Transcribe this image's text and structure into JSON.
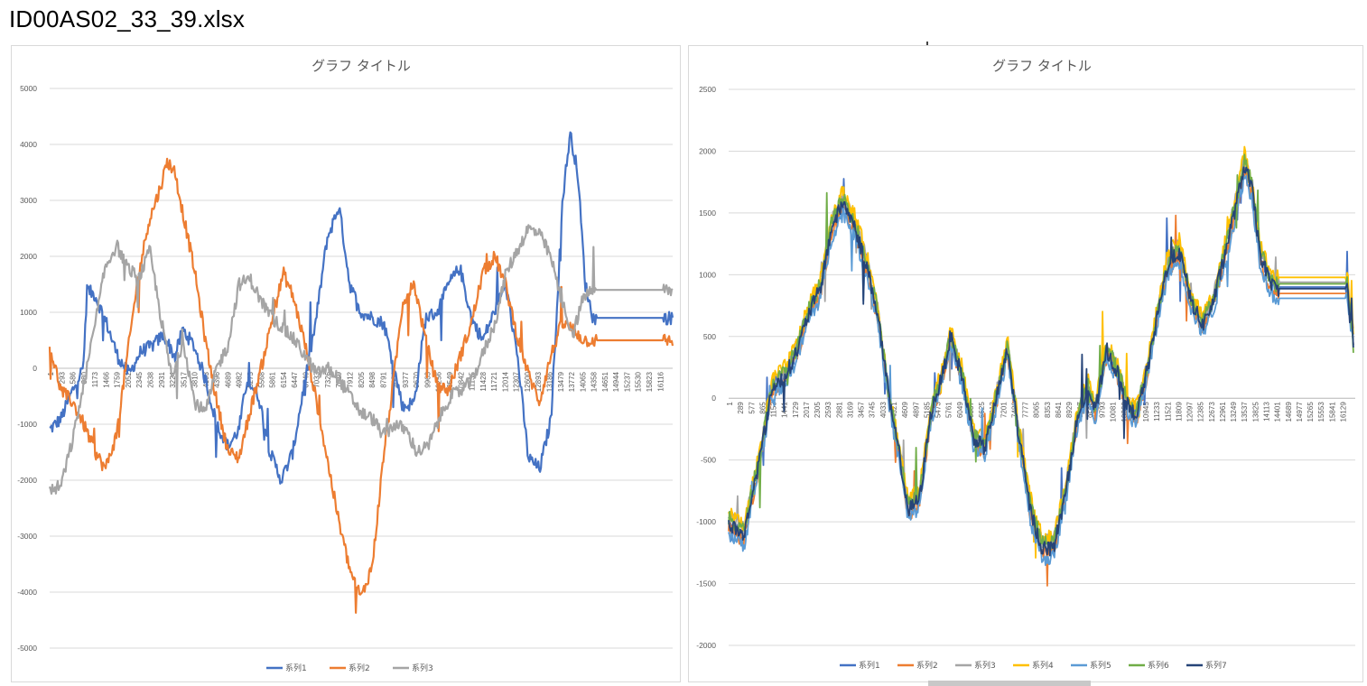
{
  "file_title": "ID00AS02_33_39.xlsx",
  "chart_data": [
    {
      "type": "line",
      "title": "グラフ タイトル",
      "xlabel": "",
      "ylabel": "",
      "ylim": [
        -5000,
        5000
      ],
      "yticks": [
        -5000,
        -4000,
        -3000,
        -2000,
        -1000,
        0,
        1000,
        2000,
        3000,
        4000,
        5000
      ],
      "xmax": 16400,
      "grid": true,
      "legend": "bottom",
      "x_tick_labels": [
        "1",
        "293",
        "586",
        "880",
        "1173",
        "1466",
        "1759",
        "2052",
        "2345",
        "2638",
        "2931",
        "3224",
        "3517",
        "3810",
        "4103",
        "4396",
        "4689",
        "4982",
        "5275",
        "5568",
        "5861",
        "6154",
        "6447",
        "6740",
        "7033",
        "7326",
        "7619",
        "7912",
        "8205",
        "8498",
        "8791",
        "9084",
        "9377",
        "9670",
        "9963",
        "10256",
        "10549",
        "10842",
        "11135",
        "11428",
        "11721",
        "12014",
        "12307",
        "12600",
        "12893",
        "13186",
        "13479",
        "13772",
        "14065",
        "14358",
        "14651",
        "14944",
        "15237",
        "15530",
        "15823",
        "16116"
      ],
      "series": [
        {
          "name": "系列1",
          "color": "#4472C4",
          "x": [
            1,
            300,
            600,
            880,
            1000,
            1200,
            1500,
            1800,
            2100,
            2400,
            2700,
            3000,
            3300,
            3500,
            3800,
            4100,
            4400,
            4700,
            4982,
            5200,
            5500,
            5800,
            6100,
            6400,
            6700,
            7000,
            7300,
            7619,
            7900,
            8200,
            8500,
            8800,
            9000,
            9300,
            9600,
            9900,
            10200,
            10500,
            10800,
            11100,
            11400,
            11700,
            12000,
            12300,
            12600,
            12900,
            13200,
            13500,
            13700,
            13900,
            14100,
            14300,
            14400,
            16400
          ],
          "y": [
            -1100,
            -900,
            -400,
            0,
            1400,
            1300,
            800,
            200,
            -100,
            300,
            400,
            600,
            200,
            700,
            400,
            -200,
            -1000,
            -1400,
            -1100,
            -200,
            -500,
            -1500,
            -2000,
            -1500,
            -300,
            800,
            2300,
            2900,
            1500,
            1000,
            900,
            800,
            200,
            -700,
            -600,
            900,
            1000,
            1500,
            1800,
            900,
            500,
            1000,
            1500,
            300,
            -1600,
            -1800,
            -900,
            3000,
            4200,
            3500,
            1500,
            900,
            900,
            900
          ]
        },
        {
          "name": "系列2",
          "color": "#ED7D31",
          "x": [
            1,
            300,
            600,
            900,
            1200,
            1466,
            1759,
            2000,
            2300,
            2600,
            2900,
            3100,
            3300,
            3500,
            3800,
            4100,
            4400,
            4700,
            4982,
            5300,
            5600,
            5900,
            6154,
            6400,
            6700,
            7000,
            7300,
            7600,
            7900,
            8205,
            8500,
            8800,
            9000,
            9300,
            9600,
            9900,
            10200,
            10500,
            10800,
            11100,
            11400,
            11721,
            12000,
            12300,
            12600,
            12893,
            13186,
            13479,
            13772,
            14065,
            14358,
            16400
          ],
          "y": [
            400,
            -400,
            -600,
            -1000,
            -1500,
            -1800,
            -1200,
            0,
            1500,
            2600,
            3200,
            3700,
            3500,
            2800,
            1800,
            500,
            -600,
            -1500,
            -1600,
            -700,
            100,
            1000,
            1700,
            1300,
            500,
            -500,
            -1600,
            -2700,
            -3600,
            -4100,
            -3500,
            -1500,
            -500,
            1200,
            1500,
            500,
            -300,
            -400,
            200,
            800,
            1700,
            2000,
            1500,
            600,
            -100,
            -600,
            200,
            800,
            700,
            500,
            500,
            500
          ]
        },
        {
          "name": "系列3",
          "color": "#A5A5A5",
          "x": [
            1,
            300,
            600,
            900,
            1200,
            1466,
            1759,
            2052,
            2345,
            2638,
            2931,
            3224,
            3517,
            3810,
            4103,
            4396,
            4689,
            4982,
            5275,
            5568,
            5861,
            6154,
            6447,
            6740,
            7033,
            7326,
            7619,
            7912,
            8205,
            8498,
            8791,
            9084,
            9377,
            9670,
            9963,
            10256,
            10549,
            10842,
            11135,
            11428,
            11721,
            12014,
            12307,
            12600,
            12893,
            13186,
            13479,
            13772,
            14065,
            14358,
            16400
          ],
          "y": [
            -2200,
            -2100,
            -1300,
            -300,
            800,
            1800,
            2200,
            1800,
            1600,
            2100,
            900,
            -200,
            500,
            -600,
            -800,
            0,
            400,
            1500,
            1600,
            1200,
            900,
            700,
            500,
            200,
            -100,
            0,
            -200,
            -500,
            -800,
            -900,
            -1200,
            -1000,
            -1100,
            -1500,
            -1400,
            -900,
            -500,
            -400,
            -200,
            300,
            800,
            1700,
            2100,
            2500,
            2400,
            2000,
            1200,
            600,
            1300,
            1400,
            1400
          ]
        }
      ]
    },
    {
      "type": "line",
      "title": "グラフ タイトル",
      "xlabel": "",
      "ylabel": "",
      "ylim": [
        -2000,
        2500
      ],
      "yticks": [
        -2000,
        -1500,
        -1000,
        -500,
        0,
        500,
        1000,
        1500,
        2000,
        2500
      ],
      "xmax": 16400,
      "grid": true,
      "legend": "bottom",
      "x_tick_labels": [
        "1",
        "289",
        "577",
        "865",
        "1153",
        "1441",
        "1729",
        "2017",
        "2305",
        "2593",
        "2881",
        "3169",
        "3457",
        "3745",
        "4033",
        "4321",
        "4609",
        "4897",
        "5185",
        "5473",
        "5761",
        "6049",
        "6337",
        "6625",
        "6913",
        "7201",
        "7489",
        "7777",
        "8065",
        "8353",
        "8641",
        "8929",
        "9217",
        "9505",
        "9793",
        "10081",
        "10369",
        "10657",
        "10945",
        "11233",
        "11521",
        "11809",
        "12097",
        "12385",
        "12673",
        "12961",
        "13249",
        "13537",
        "13825",
        "14113",
        "14401",
        "14689",
        "14977",
        "15265",
        "15553",
        "15841",
        "16129"
      ],
      "base_curve": {
        "x": [
          1,
          400,
          800,
          1150,
          1500,
          1800,
          2100,
          2400,
          2700,
          3000,
          3300,
          3600,
          3900,
          4200,
          4500,
          4700,
          5000,
          5300,
          5600,
          5800,
          6100,
          6400,
          6700,
          7000,
          7300,
          7600,
          7900,
          8200,
          8500,
          8800,
          9100,
          9400,
          9600,
          9900,
          10200,
          10500,
          10700,
          11000,
          11300,
          11500,
          11800,
          12100,
          12400,
          12700,
          13000,
          13300,
          13500,
          13700,
          13900,
          14100,
          14300,
          14500,
          16200,
          16250,
          16350
        ],
        "y": [
          -1000,
          -1100,
          -500,
          100,
          200,
          400,
          700,
          900,
          1400,
          1600,
          1400,
          1100,
          700,
          0,
          -500,
          -900,
          -800,
          -100,
          200,
          500,
          200,
          -300,
          -400,
          0,
          400,
          -300,
          -900,
          -1200,
          -1200,
          -800,
          -200,
          100,
          -100,
          400,
          200,
          -100,
          -100,
          300,
          800,
          1100,
          1200,
          800,
          600,
          800,
          1200,
          1600,
          1900,
          1700,
          1200,
          1000,
          900,
          900,
          900,
          700,
          480
        ]
      },
      "series": [
        {
          "name": "系列1",
          "color": "#4472C4"
        },
        {
          "name": "系列2",
          "color": "#ED7D31"
        },
        {
          "name": "系列3",
          "color": "#A5A5A5"
        },
        {
          "name": "系列4",
          "color": "#FFC000"
        },
        {
          "name": "系列5",
          "color": "#5B9BD5"
        },
        {
          "name": "系列6",
          "color": "#70AD47"
        },
        {
          "name": "系列7",
          "color": "#264478"
        }
      ]
    }
  ]
}
